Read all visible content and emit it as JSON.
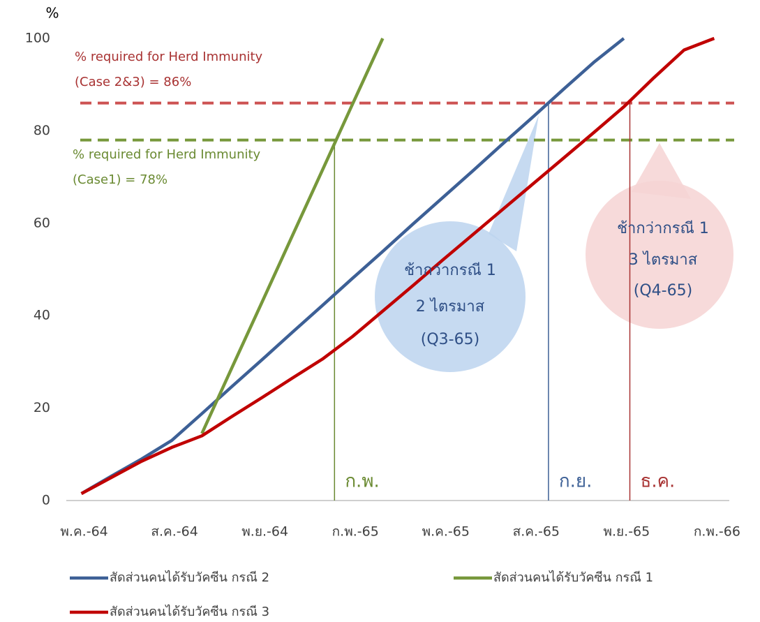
{
  "chart_data": {
    "type": "line",
    "y_axis_label": "%",
    "categories": [
      "พ.ค.-64",
      null,
      null,
      "ส.ค.-64",
      null,
      null,
      "พ.ย.-64",
      null,
      null,
      "ก.พ.-65",
      null,
      null,
      "พ.ค.-65",
      null,
      null,
      "ส.ค.-65",
      null,
      null,
      "พ.ย.-65",
      null,
      null,
      "ก.พ.-66"
    ],
    "series": [
      {
        "name": "สัดส่วนคนได้รับวัคซีน กรณี 2",
        "color": "#3d6096",
        "values": [
          1.5,
          5.3,
          9,
          13,
          18.8,
          24.7,
          30.5,
          36.4,
          42.2,
          48.1,
          53.9,
          59.8,
          65.6,
          71.4,
          77.3,
          83.1,
          89,
          94.8,
          100,
          null,
          null,
          null
        ]
      },
      {
        "name": "สัดส่วนคนได้รับวัคซีน กรณี 1",
        "color": "#77983b",
        "values": [
          null,
          null,
          null,
          null,
          14.5,
          28.8,
          43,
          57.3,
          71.5,
          85.8,
          100,
          null,
          null,
          null,
          null,
          null,
          null,
          null,
          null,
          null,
          null,
          null
        ]
      },
      {
        "name": "สัดส่วนคนได้รับวัคซีน กรณี 3",
        "color": "#c00000",
        "values": [
          1.5,
          5,
          8.5,
          11.5,
          14,
          18.2,
          22.3,
          26.5,
          30.6,
          35.5,
          41,
          46.5,
          52.1,
          57.6,
          63.1,
          68.6,
          74.1,
          79.6,
          85.2,
          91.5,
          97.5,
          100
        ]
      }
    ],
    "ylim": [
      0,
      100
    ],
    "yticks": [
      0,
      20,
      40,
      60,
      80,
      100
    ],
    "reference_lines": [
      {
        "value": 86,
        "color": "#cd5252",
        "label_lines": [
          "% required for Herd Immunity",
          "(Case 2&3) = 86%"
        ],
        "label_color": "#a83232"
      },
      {
        "value": 78,
        "color": "#77983b",
        "label_lines": [
          "% required for Herd Immunity",
          "(Case1) = 78%"
        ],
        "label_color": "#6a8a32"
      }
    ],
    "vertical_markers": [
      {
        "x": 8.4,
        "y": 78,
        "color": "#6a8a32",
        "label": "ก.พ."
      },
      {
        "x": 15.5,
        "y": 86,
        "color": "#3d6096",
        "label": "ก.ย."
      },
      {
        "x": 18.2,
        "y": 86,
        "color": "#a83232",
        "label": "ธ.ค."
      }
    ],
    "callouts": [
      {
        "lines": [
          "ช้ากว่ากรณี 1",
          "2 ไตรมาส",
          "(Q3-65)"
        ],
        "color": "#bcd3ef"
      },
      {
        "lines": [
          "ช้ากว่ากรณี 1",
          "3 ไตรมาส",
          "(Q4-65)"
        ],
        "color": "#f6d4d4"
      }
    ]
  }
}
